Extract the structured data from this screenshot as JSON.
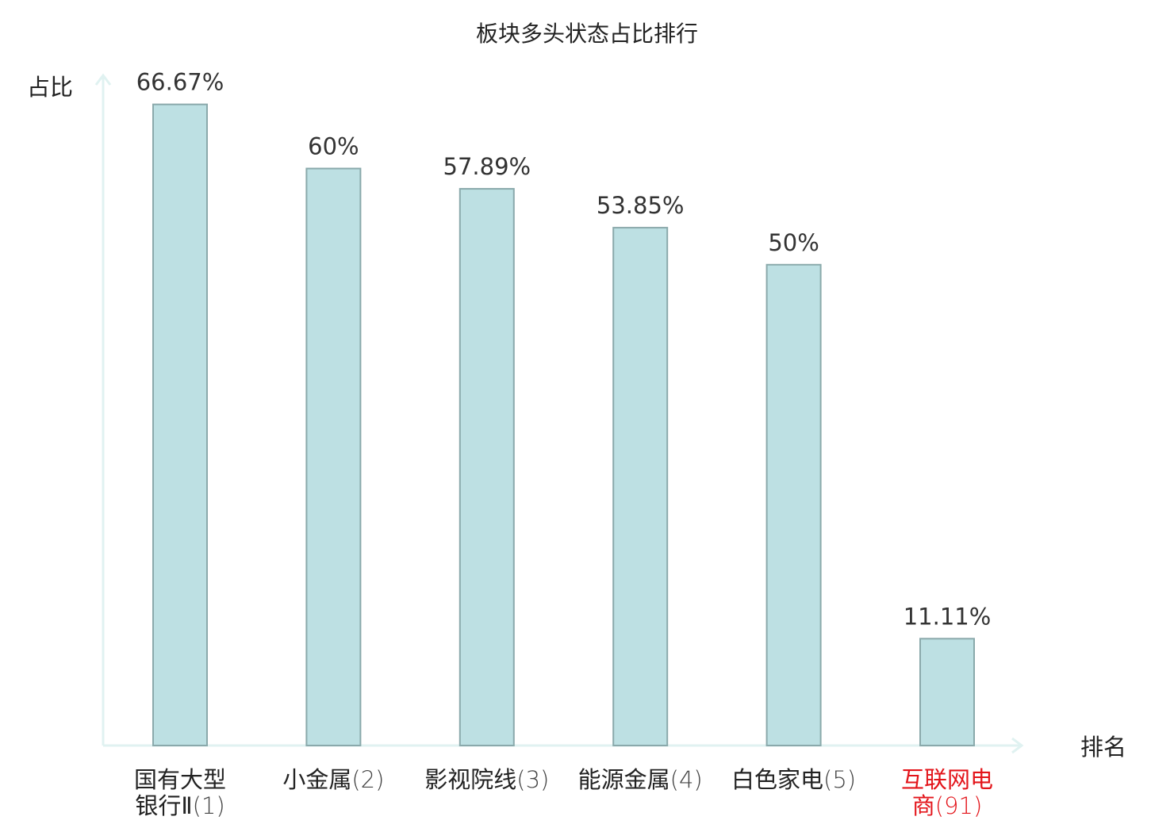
{
  "chart_data": {
    "type": "bar",
    "title": "板块多头状态占比排行",
    "xlabel": "排名",
    "ylabel": "占比",
    "categories": [
      {
        "line1": "国有大型",
        "line2": "银行Ⅱ",
        "rank": "(1)",
        "highlight": false
      },
      {
        "line1": "小金属",
        "line2": "",
        "rank": "(2)",
        "highlight": false
      },
      {
        "line1": "影视院线",
        "line2": "",
        "rank": "(3)",
        "highlight": false
      },
      {
        "line1": "能源金属",
        "line2": "",
        "rank": "(4)",
        "highlight": false
      },
      {
        "line1": "白色家电",
        "line2": "",
        "rank": "(5)",
        "highlight": false
      },
      {
        "line1": "互联网电",
        "line2": "商",
        "rank": "(91)",
        "highlight": true
      }
    ],
    "values": [
      66.67,
      60,
      57.89,
      53.85,
      50,
      11.11
    ],
    "value_labels": [
      "66.67%",
      "60%",
      "57.89%",
      "53.85%",
      "50%",
      "11.11%"
    ],
    "ylim": [
      0,
      70
    ],
    "grid": false,
    "colors": {
      "bar_fill": "#bde0e3",
      "bar_stroke": "#8aa9ab",
      "axis": "#e0f2f1",
      "text": "#333333",
      "highlight": "#e3141a"
    }
  }
}
